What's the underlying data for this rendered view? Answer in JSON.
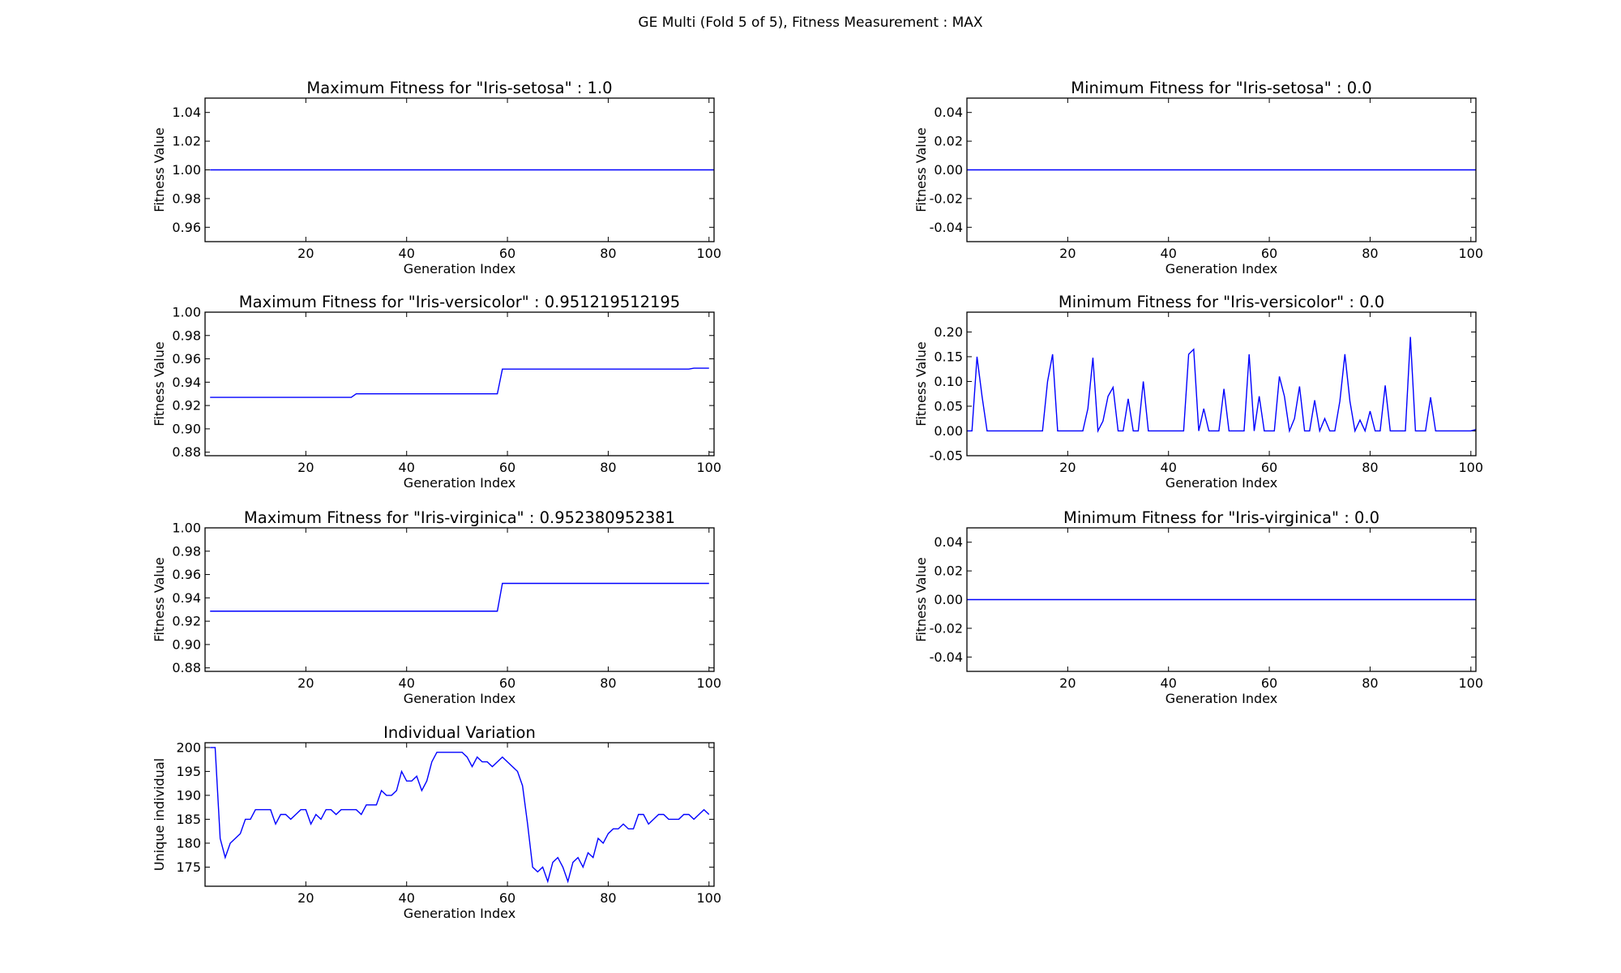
{
  "figure": {
    "suptitle": "GE Multi (Fold 5 of 5), Fitness Measurement : MAX",
    "line_color": "#0000ff"
  },
  "chart_data": [
    {
      "type": "line",
      "title": "Maximum Fitness for \"Iris-setosa\" : 1.0",
      "xlabel": "Generation Index",
      "ylabel": "Fitness Value",
      "xlim": [
        0,
        101
      ],
      "ylim": [
        0.95,
        1.05
      ],
      "xticks": [
        20,
        40,
        60,
        80,
        100
      ],
      "yticks": [
        0.96,
        0.98,
        1.0,
        1.02,
        1.04
      ],
      "ytick_decimals": 2,
      "series": [
        {
          "x": [
            1,
            101
          ],
          "y": [
            1.0,
            1.0
          ]
        }
      ]
    },
    {
      "type": "line",
      "title": "Minimum Fitness for \"Iris-setosa\" : 0.0",
      "xlabel": "Generation Index",
      "ylabel": "Fitness Value",
      "xlim": [
        0,
        101
      ],
      "ylim": [
        -0.05,
        0.05
      ],
      "xticks": [
        20,
        40,
        60,
        80,
        100
      ],
      "yticks": [
        -0.04,
        -0.02,
        0.0,
        0.02,
        0.04
      ],
      "ytick_decimals": 2,
      "series": [
        {
          "x": [
            0,
            101
          ],
          "y": [
            0.0,
            0.0
          ]
        }
      ]
    },
    {
      "type": "line",
      "title": "Maximum Fitness for \"Iris-versicolor\" : 0.951219512195",
      "xlabel": "Generation Index",
      "ylabel": "Fitness Value",
      "xlim": [
        0,
        101
      ],
      "ylim": [
        0.877,
        1.0
      ],
      "xticks": [
        20,
        40,
        60,
        80,
        100
      ],
      "yticks": [
        0.88,
        0.9,
        0.92,
        0.94,
        0.96,
        0.98,
        1.0
      ],
      "ytick_decimals": 2,
      "series": [
        {
          "x": [
            1,
            29,
            30,
            58,
            59,
            96,
            97,
            100
          ],
          "y": [
            0.927,
            0.927,
            0.93,
            0.93,
            0.9512,
            0.9512,
            0.952,
            0.952
          ]
        }
      ]
    },
    {
      "type": "line",
      "title": "Minimum Fitness for \"Iris-versicolor\" : 0.0",
      "xlabel": "Generation Index",
      "ylabel": "Fitness Value",
      "xlim": [
        0,
        101
      ],
      "ylim": [
        -0.05,
        0.24
      ],
      "xticks": [
        20,
        40,
        60,
        80,
        100
      ],
      "yticks": [
        -0.05,
        0.0,
        0.05,
        0.1,
        0.15,
        0.2
      ],
      "ytick_decimals": 2,
      "series": [
        {
          "x": [
            0,
            1,
            2,
            3,
            4,
            5,
            6,
            7,
            8,
            9,
            10,
            11,
            12,
            13,
            14,
            15,
            16,
            17,
            18,
            19,
            20,
            21,
            22,
            23,
            24,
            25,
            26,
            27,
            28,
            29,
            30,
            31,
            32,
            33,
            34,
            35,
            36,
            37,
            38,
            39,
            40,
            41,
            42,
            43,
            44,
            45,
            46,
            47,
            48,
            49,
            50,
            51,
            52,
            53,
            54,
            55,
            56,
            57,
            58,
            59,
            60,
            61,
            62,
            63,
            64,
            65,
            66,
            67,
            68,
            69,
            70,
            71,
            72,
            73,
            74,
            75,
            76,
            77,
            78,
            79,
            80,
            81,
            82,
            83,
            84,
            85,
            86,
            87,
            88,
            89,
            90,
            91,
            92,
            93,
            94,
            95,
            96,
            97,
            98,
            99,
            100,
            101
          ],
          "y": [
            0,
            0,
            0.15,
            0.07,
            0,
            0,
            0,
            0,
            0,
            0,
            0,
            0,
            0,
            0,
            0,
            0,
            0.1,
            0.155,
            0,
            0,
            0,
            0,
            0,
            0,
            0.045,
            0.148,
            0,
            0.02,
            0.07,
            0.088,
            0,
            0,
            0.065,
            0,
            0,
            0.1,
            0,
            0,
            0,
            0,
            0,
            0,
            0,
            0,
            0.155,
            0.165,
            0,
            0.045,
            0,
            0,
            0,
            0.085,
            0,
            0,
            0,
            0,
            0.155,
            0,
            0.07,
            0,
            0,
            0,
            0.11,
            0.07,
            0,
            0.025,
            0.09,
            0,
            0,
            0.062,
            0,
            0.025,
            0,
            0,
            0.06,
            0.155,
            0.06,
            0,
            0.022,
            0,
            0.04,
            0,
            0,
            0.092,
            0,
            0,
            0,
            0,
            0.19,
            0,
            0,
            0,
            0.068,
            0,
            0,
            0,
            0,
            0,
            0,
            0,
            0,
            0.003
          ]
        }
      ]
    },
    {
      "type": "line",
      "title": "Maximum Fitness for \"Iris-virginica\" : 0.952380952381",
      "xlabel": "Generation Index",
      "ylabel": "Fitness Value",
      "xlim": [
        0,
        101
      ],
      "ylim": [
        0.877,
        1.0
      ],
      "xticks": [
        20,
        40,
        60,
        80,
        100
      ],
      "yticks": [
        0.88,
        0.9,
        0.92,
        0.94,
        0.96,
        0.98,
        1.0
      ],
      "ytick_decimals": 2,
      "series": [
        {
          "x": [
            1,
            58,
            59,
            100
          ],
          "y": [
            0.9286,
            0.9286,
            0.9524,
            0.9524
          ]
        }
      ]
    },
    {
      "type": "line",
      "title": "Minimum Fitness for \"Iris-virginica\" : 0.0",
      "xlabel": "Generation Index",
      "ylabel": "Fitness Value",
      "xlim": [
        0,
        101
      ],
      "ylim": [
        -0.05,
        0.05
      ],
      "xticks": [
        20,
        40,
        60,
        80,
        100
      ],
      "yticks": [
        -0.04,
        -0.02,
        0.0,
        0.02,
        0.04
      ],
      "ytick_decimals": 2,
      "series": [
        {
          "x": [
            0,
            101
          ],
          "y": [
            0.0,
            0.0
          ]
        }
      ]
    },
    {
      "type": "line",
      "title": "Individual Variation",
      "xlabel": "Generation Index",
      "ylabel": "Unique individual",
      "xlim": [
        0,
        101
      ],
      "ylim": [
        171,
        201
      ],
      "xticks": [
        20,
        40,
        60,
        80,
        100
      ],
      "yticks": [
        175,
        180,
        185,
        190,
        195,
        200
      ],
      "ytick_decimals": 0,
      "series": [
        {
          "x": [
            1,
            2,
            3,
            4,
            5,
            6,
            7,
            8,
            9,
            10,
            11,
            12,
            13,
            14,
            15,
            16,
            17,
            18,
            19,
            20,
            21,
            22,
            23,
            24,
            25,
            26,
            27,
            28,
            29,
            30,
            31,
            32,
            33,
            34,
            35,
            36,
            37,
            38,
            39,
            40,
            41,
            42,
            43,
            44,
            45,
            46,
            47,
            48,
            49,
            50,
            51,
            52,
            53,
            54,
            55,
            56,
            57,
            58,
            59,
            60,
            61,
            62,
            63,
            64,
            65,
            66,
            67,
            68,
            69,
            70,
            71,
            72,
            73,
            74,
            75,
            76,
            77,
            78,
            79,
            80,
            81,
            82,
            83,
            84,
            85,
            86,
            87,
            88,
            89,
            90,
            91,
            92,
            93,
            94,
            95,
            96,
            97,
            98,
            99,
            100
          ],
          "y": [
            200,
            200,
            181,
            177,
            180,
            181,
            182,
            185,
            185,
            187,
            187,
            187,
            187,
            184,
            186,
            186,
            185,
            186,
            187,
            187,
            184,
            186,
            185,
            187,
            187,
            186,
            187,
            187,
            187,
            187,
            186,
            188,
            188,
            188,
            191,
            190,
            190,
            191,
            195,
            193,
            193,
            194,
            191,
            193,
            197,
            199,
            199,
            199,
            199,
            199,
            199,
            198,
            196,
            198,
            197,
            197,
            196,
            197,
            198,
            197,
            196,
            195,
            192,
            184,
            175,
            174,
            175,
            172,
            176,
            177,
            175,
            172,
            176,
            177,
            175,
            178,
            177,
            181,
            180,
            182,
            183,
            183,
            184,
            183,
            183,
            186,
            186,
            184,
            185,
            186,
            186,
            185,
            185,
            185,
            186,
            186,
            185,
            186,
            187,
            186
          ]
        }
      ]
    }
  ]
}
